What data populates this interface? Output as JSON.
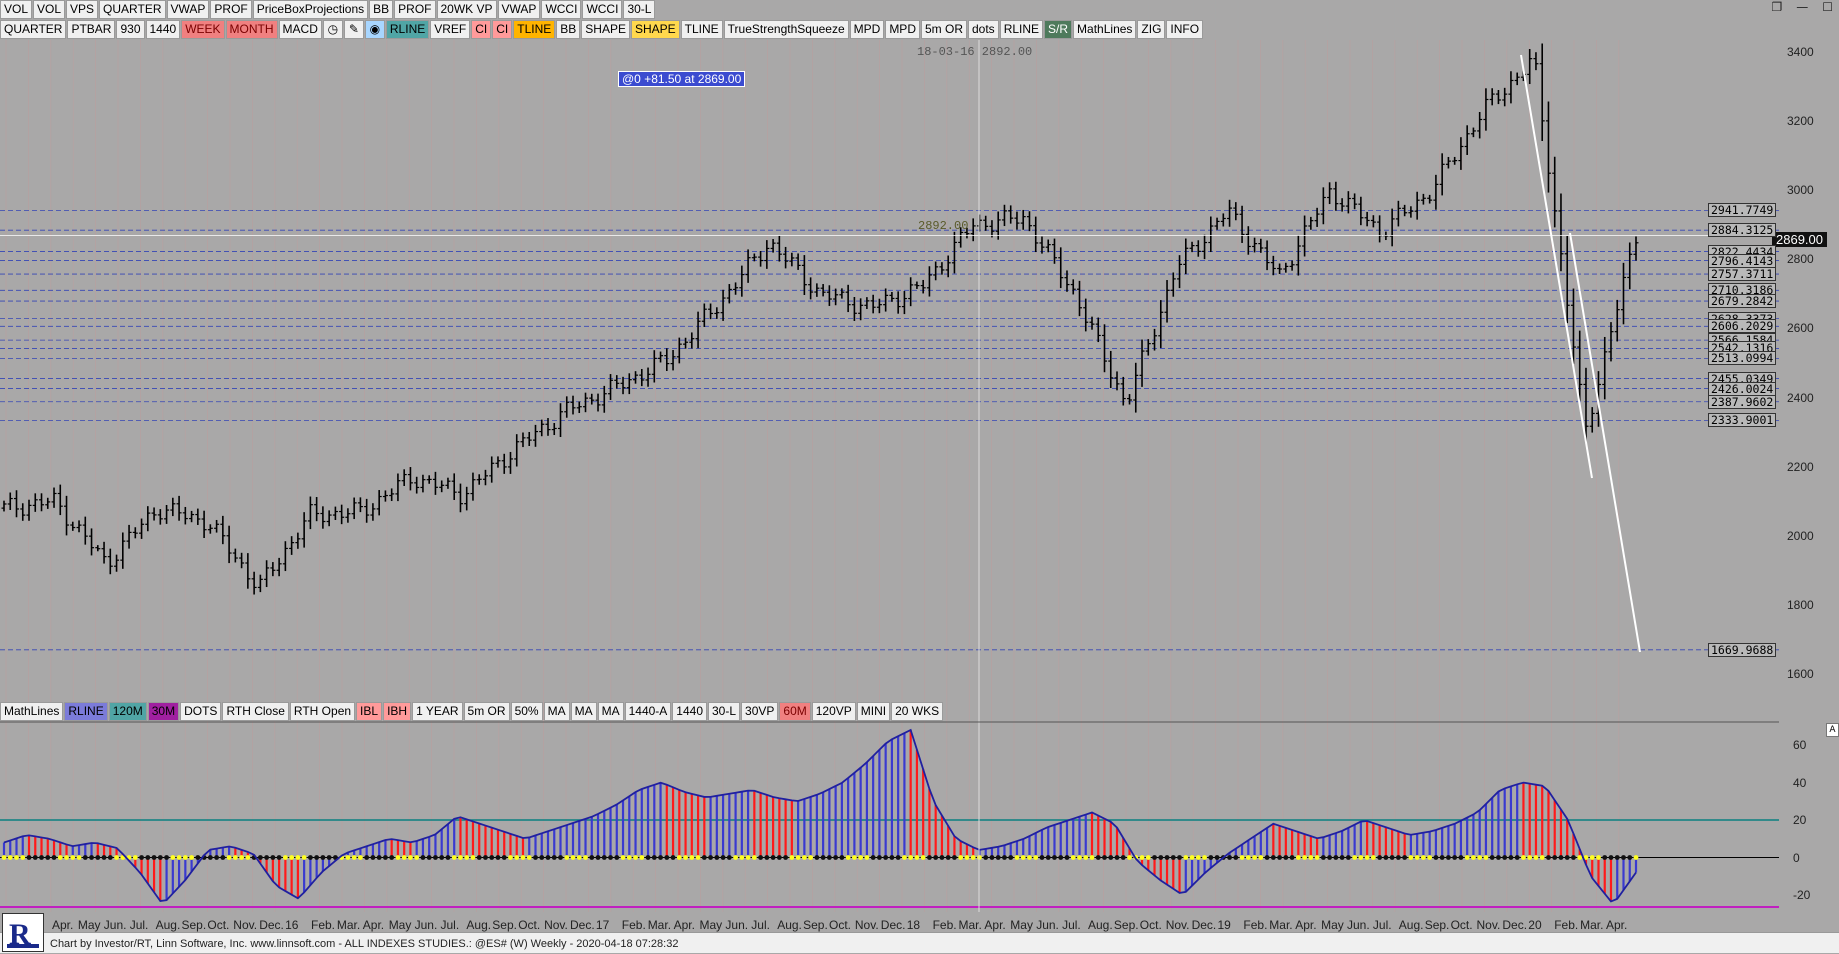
{
  "toolbar_top": [
    "VOL",
    "VOL",
    "VPS",
    "QUARTER",
    "VWAP",
    "PROF",
    "PriceBoxProjections",
    "BB",
    "PROF",
    "20WK VP",
    "VWAP",
    "WCCI",
    "WCCI",
    "30-L"
  ],
  "toolbar_second": [
    {
      "label": "QUARTER",
      "style": ""
    },
    {
      "label": "PTBAR",
      "style": ""
    },
    {
      "label": "930",
      "style": ""
    },
    {
      "label": "1440",
      "style": ""
    },
    {
      "label": "WEEK",
      "style": "red"
    },
    {
      "label": "MONTH",
      "style": "red"
    },
    {
      "label": "MACD",
      "style": ""
    },
    {
      "label": "RLINE",
      "style": "teal"
    },
    {
      "label": "VREF",
      "style": ""
    },
    {
      "label": "CI",
      "style": "pink"
    },
    {
      "label": "CI",
      "style": "pink"
    },
    {
      "label": "TLINE",
      "style": "orange"
    },
    {
      "label": "BB",
      "style": ""
    },
    {
      "label": "SHAPE",
      "style": ""
    },
    {
      "label": "SHAPE",
      "style": "yellow"
    },
    {
      "label": "TLINE",
      "style": ""
    },
    {
      "label": "TrueStrengthSqueeze",
      "style": ""
    },
    {
      "label": "MPD",
      "style": ""
    },
    {
      "label": "MPD",
      "style": ""
    },
    {
      "label": "5m OR",
      "style": ""
    },
    {
      "label": "dots",
      "style": ""
    },
    {
      "label": "RLINE",
      "style": ""
    },
    {
      "label": "S/R",
      "style": "darkgreen"
    },
    {
      "label": "MathLines",
      "style": ""
    },
    {
      "label": "ZIG",
      "style": ""
    },
    {
      "label": "INFO",
      "style": ""
    }
  ],
  "toolbar_lower": [
    {
      "label": "MathLines",
      "style": ""
    },
    {
      "label": "RLINE",
      "style": "blue"
    },
    {
      "label": "120M",
      "style": "teal"
    },
    {
      "label": "30M",
      "style": "purple"
    },
    {
      "label": "DOTS",
      "style": ""
    },
    {
      "label": "RTH Close",
      "style": ""
    },
    {
      "label": "RTH Open",
      "style": ""
    },
    {
      "label": "IBL",
      "style": "pink"
    },
    {
      "label": "IBH",
      "style": "pink"
    },
    {
      "label": "1 YEAR",
      "style": ""
    },
    {
      "label": "5m OR",
      "style": ""
    },
    {
      "label": "50%",
      "style": ""
    },
    {
      "label": "MA",
      "style": ""
    },
    {
      "label": "MA",
      "style": ""
    },
    {
      "label": "MA",
      "style": ""
    },
    {
      "label": "1440-A",
      "style": ""
    },
    {
      "label": "1440",
      "style": ""
    },
    {
      "label": "30-L",
      "style": ""
    },
    {
      "label": "30VP",
      "style": ""
    },
    {
      "label": "60M",
      "style": "red"
    },
    {
      "label": "120VP",
      "style": ""
    },
    {
      "label": "MINI",
      "style": ""
    },
    {
      "label": "20 WKS",
      "style": ""
    }
  ],
  "window_controls": [
    "❐",
    "—",
    "☐"
  ],
  "annotation": "@0  +81.50 at 2869.00",
  "crosshair_label": "18-03-16  2892.00",
  "peak_label": "2892.00",
  "current_price": "2869.00",
  "icons": [
    "clock-icon",
    "pencil-icon",
    "globe-icon"
  ],
  "footer": "Chart by Investor/RT, Linn Software, Inc. www.linnsoft.com - ALL INDEXES STUDIES.: @ES# (W) Weekly - 2020-04-18 07:28:32",
  "a_button": "A",
  "chart_data": {
    "type": "line",
    "title": "",
    "price_axis_ticks": [
      "3400",
      "3200",
      "3000",
      "2800",
      "2600",
      "2400",
      "2200",
      "2000",
      "1800",
      "1600"
    ],
    "osc_axis_ticks": [
      "60",
      "40",
      "20",
      "0",
      "-20"
    ],
    "x_tick_labels": [
      "Apr.",
      "May",
      "Jun.",
      "Jul.",
      "Aug.",
      "Sep.",
      "Oct.",
      "Nov.",
      "Dec.",
      "16",
      "Feb.",
      "Mar.",
      "Apr.",
      "May",
      "Jun.",
      "Jul.",
      "Aug.",
      "Sep.",
      "Oct.",
      "Nov.",
      "Dec.",
      "17",
      "Feb.",
      "Mar.",
      "Apr.",
      "May",
      "Jun.",
      "Jul.",
      "Aug.",
      "Sep.",
      "Oct.",
      "Nov.",
      "Dec.",
      "18",
      "Feb.",
      "Mar.",
      "Apr.",
      "May",
      "Jun.",
      "Jul.",
      "Aug.",
      "Sep.",
      "Oct.",
      "Nov.",
      "Dec.",
      "19",
      "Feb.",
      "Mar.",
      "Apr.",
      "May",
      "Jun.",
      "Jul.",
      "Aug.",
      "Sep.",
      "Oct.",
      "Nov.",
      "Dec.",
      "20",
      "Feb.",
      "Mar.",
      "Apr."
    ],
    "sr_levels": [
      "2941.7749",
      "2884.3125",
      "2822.4434",
      "2796.4143",
      "2757.3711",
      "2710.3186",
      "2679.2842",
      "2628.3373",
      "2606.2029",
      "2566.1584",
      "2542.1316",
      "2513.0994",
      "2455.0349",
      "2426.0024",
      "2387.9602",
      "2333.9001",
      "1669.9688"
    ],
    "price_series": [
      {
        "date": "2015-04",
        "close": 2080
      },
      {
        "date": "2015-06",
        "close": 2100
      },
      {
        "date": "2015-08",
        "close": 1920
      },
      {
        "date": "2015-10",
        "close": 2080
      },
      {
        "date": "2015-12",
        "close": 2040
      },
      {
        "date": "2016-02",
        "close": 1850
      },
      {
        "date": "2016-04",
        "close": 2060
      },
      {
        "date": "2016-06",
        "close": 2070
      },
      {
        "date": "2016-08",
        "close": 2170
      },
      {
        "date": "2016-10",
        "close": 2120
      },
      {
        "date": "2016-12",
        "close": 2250
      },
      {
        "date": "2017-03",
        "close": 2360
      },
      {
        "date": "2017-06",
        "close": 2430
      },
      {
        "date": "2017-09",
        "close": 2510
      },
      {
        "date": "2017-12",
        "close": 2670
      },
      {
        "date": "2018-01",
        "close": 2850
      },
      {
        "date": "2018-02",
        "close": 2700
      },
      {
        "date": "2018-04",
        "close": 2660
      },
      {
        "date": "2018-06",
        "close": 2720
      },
      {
        "date": "2018-08",
        "close": 2900
      },
      {
        "date": "2018-09",
        "close": 2920
      },
      {
        "date": "2018-10",
        "close": 2700
      },
      {
        "date": "2018-12",
        "close": 2380
      },
      {
        "date": "2019-02",
        "close": 2780
      },
      {
        "date": "2019-04",
        "close": 2940
      },
      {
        "date": "2019-05",
        "close": 2750
      },
      {
        "date": "2019-07",
        "close": 3000
      },
      {
        "date": "2019-08",
        "close": 2880
      },
      {
        "date": "2019-10",
        "close": 3000
      },
      {
        "date": "2019-12",
        "close": 3230
      },
      {
        "date": "2020-02",
        "close": 3380
      },
      {
        "date": "2020-03",
        "close": 2300
      },
      {
        "date": "2020-04",
        "close": 2869
      }
    ],
    "oscillator_series": [
      8,
      12,
      10,
      6,
      8,
      5,
      -8,
      -25,
      -12,
      4,
      6,
      2,
      -15,
      -22,
      -8,
      2,
      6,
      10,
      8,
      12,
      22,
      18,
      14,
      10,
      14,
      18,
      22,
      28,
      36,
      40,
      35,
      32,
      34,
      36,
      32,
      30,
      34,
      40,
      50,
      62,
      68,
      30,
      10,
      4,
      6,
      10,
      16,
      20,
      24,
      18,
      -2,
      -12,
      -20,
      -8,
      2,
      10,
      18,
      14,
      10,
      14,
      20,
      16,
      12,
      14,
      18,
      24,
      36,
      40,
      38,
      20,
      -10,
      -25,
      -8
    ]
  }
}
